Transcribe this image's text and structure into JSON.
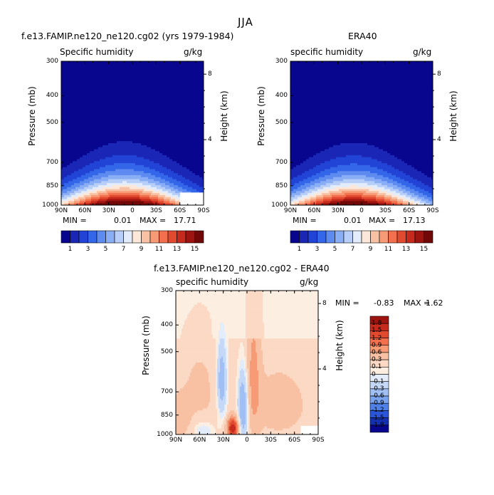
{
  "figure": {
    "title": "JJA"
  },
  "chart_data": [
    {
      "type": "heatmap",
      "id": "model",
      "title": "f.e13.FAMIP.ne120_ne120.cg02 (yrs 1979-1984)",
      "subtitle_left": "Specific humidity",
      "subtitle_right": "g/kg",
      "ylabel": "Pressure (mb)",
      "ylabel_right": "Height (km)",
      "x_ticks": [
        "90N",
        "60N",
        "30N",
        "0",
        "30S",
        "60S",
        "90S"
      ],
      "x_range": [
        90,
        -90
      ],
      "y_ticks": [
        300,
        400,
        500,
        700,
        850,
        1000
      ],
      "y_range": [
        300,
        1000
      ],
      "y_scale": "log",
      "y_right_ticks": [
        8,
        4
      ],
      "min_label": "MIN =",
      "min": "0.01",
      "max_label": "MAX =",
      "max": "17.71",
      "peak_latitude": 10,
      "surface_humidity": 17.7,
      "masked_region": "60S-90S below 900 mb",
      "colorbar": {
        "labels": [
          "1",
          "3",
          "5",
          "7",
          "9",
          "11",
          "13",
          "15"
        ],
        "levels": [
          1,
          2,
          3,
          4,
          5,
          6,
          7,
          8,
          9,
          10,
          11,
          12,
          13,
          14,
          15,
          16
        ],
        "colors": [
          "#08068f",
          "#1a26b5",
          "#2244d6",
          "#3366e8",
          "#5d8bf0",
          "#8aaef5",
          "#b7cff8",
          "#e3ecfb",
          "#fde7d9",
          "#f9c1a3",
          "#f69b76",
          "#f2704d",
          "#e24a30",
          "#c62a1c",
          "#9e1410",
          "#700808"
        ]
      }
    },
    {
      "type": "heatmap",
      "id": "obs",
      "title": "ERA40",
      "subtitle_left": "specific humidity",
      "subtitle_right": "g/kg",
      "ylabel": "Pressure (mb)",
      "ylabel_right": "Height (km)",
      "x_ticks": [
        "90N",
        "60N",
        "30N",
        "0",
        "30S",
        "60S",
        "90S"
      ],
      "x_range": [
        90,
        -90
      ],
      "y_ticks": [
        300,
        400,
        500,
        700,
        850,
        1000
      ],
      "y_range": [
        300,
        1000
      ],
      "y_scale": "log",
      "y_right_ticks": [
        8,
        4
      ],
      "min_label": "MIN =",
      "min": "0.01",
      "max_label": "MAX =",
      "max": "17.13",
      "peak_latitude": 10,
      "surface_humidity": 17.1,
      "colorbar": {
        "labels": [
          "1",
          "3",
          "5",
          "7",
          "9",
          "11",
          "13",
          "15"
        ],
        "levels": [
          1,
          2,
          3,
          4,
          5,
          6,
          7,
          8,
          9,
          10,
          11,
          12,
          13,
          14,
          15,
          16
        ],
        "colors": [
          "#08068f",
          "#1a26b5",
          "#2244d6",
          "#3366e8",
          "#5d8bf0",
          "#8aaef5",
          "#b7cff8",
          "#e3ecfb",
          "#fde7d9",
          "#f9c1a3",
          "#f69b76",
          "#f2704d",
          "#e24a30",
          "#c62a1c",
          "#9e1410",
          "#700808"
        ]
      }
    },
    {
      "type": "heatmap",
      "id": "diff",
      "title": "f.e13.FAMIP.ne120_ne120.cg02 - ERA40",
      "subtitle_left": "specific humidity",
      "subtitle_right": "g/kg",
      "ylabel": "Pressure (mb)",
      "ylabel_right": "Height (km)",
      "x_ticks": [
        "90N",
        "60N",
        "30N",
        "0",
        "30S",
        "60S",
        "90S"
      ],
      "x_range": [
        90,
        -90
      ],
      "y_ticks": [
        300,
        400,
        500,
        700,
        850,
        1000
      ],
      "y_range": [
        300,
        1000
      ],
      "y_scale": "log",
      "y_right_ticks": [
        8,
        4
      ],
      "min_label": "MIN =",
      "min": "-0.83",
      "max_label": "MAX =",
      "max": "1.62",
      "colorbar": {
        "labels": [
          "1.8",
          "1.5",
          "1.2",
          "0.9",
          "0.6",
          "0.3",
          "0.1",
          "0",
          "-0.1",
          "-0.3",
          "-0.6",
          "-0.9",
          "-1.2",
          "-1.5",
          "-1.8"
        ],
        "colors": [
          "#9e1410",
          "#c62a1c",
          "#e24a30",
          "#f2704d",
          "#f69b76",
          "#f9c1a3",
          "#fbd9c4",
          "#fdeee2",
          "#e3ecfb",
          "#c5d8f8",
          "#9fbff5",
          "#7aa3f0",
          "#4f80e8",
          "#2a55d8",
          "#1430b0",
          "#08068f"
        ]
      }
    }
  ]
}
